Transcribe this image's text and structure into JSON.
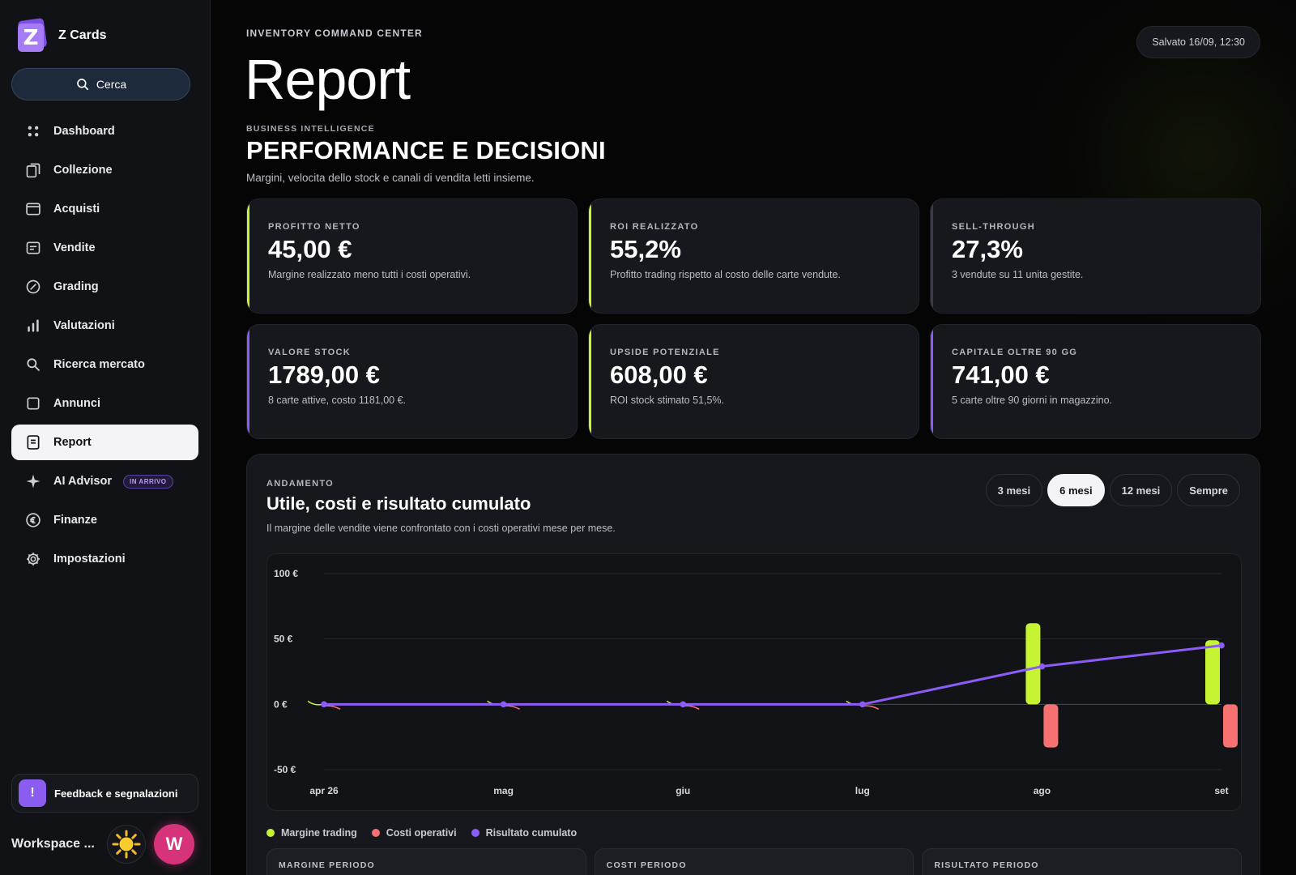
{
  "app": {
    "name": "Z Cards",
    "logo_letter": "Z"
  },
  "sidebar": {
    "search_label": "Cerca",
    "items": [
      {
        "label": "Dashboard",
        "icon": "grid-dots-icon",
        "active": false
      },
      {
        "label": "Collezione",
        "icon": "cards-stack-icon",
        "active": false
      },
      {
        "label": "Acquisti",
        "icon": "window-icon",
        "active": false
      },
      {
        "label": "Vendite",
        "icon": "receipt-icon",
        "active": false
      },
      {
        "label": "Grading",
        "icon": "slash-circle-icon",
        "active": false
      },
      {
        "label": "Valutazioni",
        "icon": "bar-chart-icon",
        "active": false
      },
      {
        "label": "Ricerca mercato",
        "icon": "search-icon",
        "active": false
      },
      {
        "label": "Annunci",
        "icon": "square-icon",
        "active": false
      },
      {
        "label": "Report",
        "icon": "document-icon",
        "active": true
      },
      {
        "label": "AI Advisor",
        "icon": "sparkle-icon",
        "active": false,
        "badge": "IN ARRIVO"
      },
      {
        "label": "Finanze",
        "icon": "euro-circle-icon",
        "active": false
      },
      {
        "label": "Impostazioni",
        "icon": "gear-icon",
        "active": false
      }
    ],
    "feedback_label": "Feedback e segnalazioni",
    "feedback_icon_text": "!",
    "workspace_label": "Workspace ...",
    "avatar_letter": "W"
  },
  "header": {
    "eyebrow": "INVENTORY COMMAND CENTER",
    "title": "Report",
    "saved": "Salvato 16/09, 12:30"
  },
  "bi": {
    "eyebrow": "BUSINESS INTELLIGENCE",
    "title": "PERFORMANCE E DECISIONI",
    "subtitle": "Margini, velocita dello stock e canali di vendita letti insieme."
  },
  "kpis": [
    {
      "label": "PROFITTO NETTO",
      "value": "45,00 €",
      "desc": "Margine realizzato meno tutti i costi operativi.",
      "accent": "#c6f432"
    },
    {
      "label": "ROI REALIZZATO",
      "value": "55,2%",
      "desc": "Profitto trading rispetto al costo delle carte vendute.",
      "accent": "#c6f432"
    },
    {
      "label": "SELL-THROUGH",
      "value": "27,3%",
      "desc": "3 vendute su 11 unita gestite.",
      "accent": "#3a3b44"
    },
    {
      "label": "VALORE STOCK",
      "value": "1789,00 €",
      "desc": "8 carte attive, costo 1181,00 €.",
      "accent": "#8b5cf6"
    },
    {
      "label": "UPSIDE POTENZIALE",
      "value": "608,00 €",
      "desc": "ROI stock stimato 51,5%.",
      "accent": "#c6f432"
    },
    {
      "label": "CAPITALE OLTRE 90 GG",
      "value": "741,00 €",
      "desc": "5 carte oltre 90 giorni in magazzino.",
      "accent": "#8b5cf6"
    }
  ],
  "trend": {
    "eyebrow": "ANDAMENTO",
    "title": "Utile, costi e risultato cumulato",
    "subtitle": "Il margine delle vendite viene confrontato con i costi operativi mese per mese.",
    "ranges": [
      {
        "label": "3 mesi",
        "active": false
      },
      {
        "label": "6 mesi",
        "active": true
      },
      {
        "label": "12 mesi",
        "active": false
      },
      {
        "label": "Sempre",
        "active": false
      }
    ]
  },
  "chart_data": {
    "type": "bar",
    "categories": [
      "apr 26",
      "mag",
      "giu",
      "lug",
      "ago",
      "set"
    ],
    "ylim": [
      -50,
      100
    ],
    "yticks": [
      100,
      50,
      0,
      -50
    ],
    "ytick_labels": [
      "100 €",
      "50 €",
      "0 €",
      "-50 €"
    ],
    "grid": true,
    "legend_position": "bottom-left",
    "series": [
      {
        "name": "Margine trading",
        "kind": "bar",
        "color": "#c6f432",
        "values": [
          0,
          0,
          0,
          0,
          62,
          49
        ]
      },
      {
        "name": "Costi operativi",
        "kind": "bar",
        "color": "#f87171",
        "values": [
          0,
          0,
          0,
          0,
          -33,
          -33
        ]
      },
      {
        "name": "Risultato cumulato",
        "kind": "line",
        "color": "#8b5cf6",
        "values": [
          0,
          0,
          0,
          0,
          29,
          45
        ]
      }
    ]
  },
  "summary": [
    {
      "label": "MARGINE PERIODO"
    },
    {
      "label": "COSTI PERIODO"
    },
    {
      "label": "RISULTATO PERIODO"
    }
  ]
}
